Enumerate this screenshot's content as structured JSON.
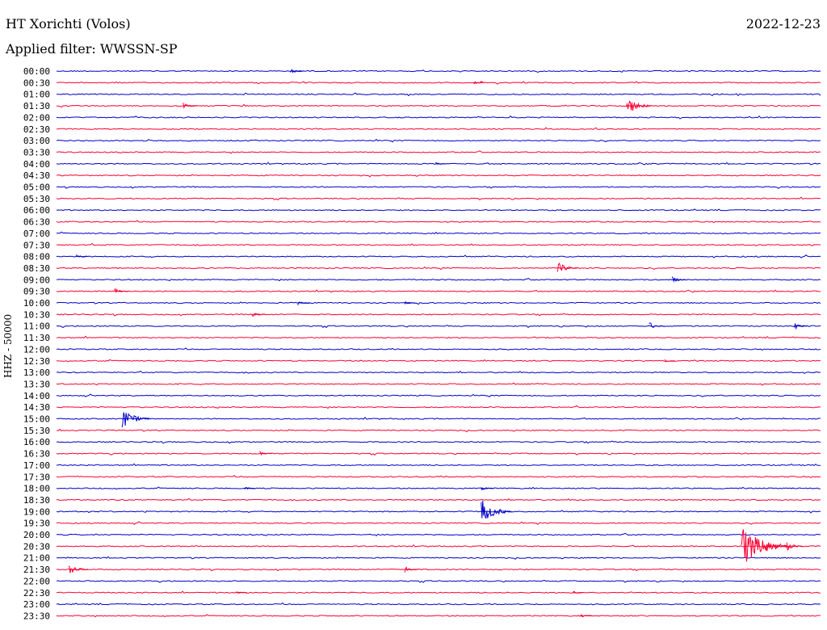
{
  "header": {
    "station": "HT Xorichti (Volos)",
    "date": "2022-12-23",
    "filter": "Applied filter: WWSSN-SP"
  },
  "chart_data": {
    "type": "line",
    "title": "HT Xorichti (Volos)",
    "ylabel": "HHZ - 50000",
    "colors": [
      "#0000cc",
      "#ff0033"
    ],
    "rows": [
      "00:00",
      "00:30",
      "01:00",
      "01:30",
      "02:00",
      "02:30",
      "03:00",
      "03:30",
      "04:00",
      "04:30",
      "05:00",
      "05:30",
      "06:00",
      "06:30",
      "07:00",
      "07:30",
      "08:00",
      "08:30",
      "09:00",
      "09:30",
      "10:00",
      "10:30",
      "11:00",
      "11:30",
      "12:00",
      "12:30",
      "13:00",
      "13:30",
      "14:00",
      "14:30",
      "15:00",
      "15:30",
      "16:00",
      "16:30",
      "17:00",
      "17:30",
      "18:00",
      "18:30",
      "19:00",
      "19:30",
      "20:00",
      "20:30",
      "21:00",
      "21:30",
      "22:00",
      "22:30",
      "23:00",
      "23:30"
    ],
    "events": [
      {
        "row": 0,
        "t": 0.31,
        "amp": 4
      },
      {
        "row": 1,
        "t": 0.55,
        "amp": 2
      },
      {
        "row": 3,
        "t": 0.17,
        "amp": 4
      },
      {
        "row": 3,
        "t": 0.75,
        "amp": 12
      },
      {
        "row": 8,
        "t": 0.5,
        "amp": 2
      },
      {
        "row": 16,
        "t": 0.03,
        "amp": 3
      },
      {
        "row": 17,
        "t": 0.66,
        "amp": 8
      },
      {
        "row": 18,
        "t": 0.81,
        "amp": 4
      },
      {
        "row": 19,
        "t": 0.08,
        "amp": 4
      },
      {
        "row": 20,
        "t": 0.32,
        "amp": 3
      },
      {
        "row": 20,
        "t": 0.46,
        "amp": 2
      },
      {
        "row": 21,
        "t": 0.26,
        "amp": 4
      },
      {
        "row": 22,
        "t": 0.78,
        "amp": 5
      },
      {
        "row": 22,
        "t": 0.97,
        "amp": 4
      },
      {
        "row": 25,
        "t": 0.8,
        "amp": 2
      },
      {
        "row": 30,
        "t": 0.09,
        "amp": 14
      },
      {
        "row": 33,
        "t": 0.27,
        "amp": 3
      },
      {
        "row": 36,
        "t": 0.25,
        "amp": 2
      },
      {
        "row": 36,
        "t": 0.56,
        "amp": 3
      },
      {
        "row": 38,
        "t": 0.56,
        "amp": 16
      },
      {
        "row": 41,
        "t": 0.9,
        "amp": 28
      },
      {
        "row": 41,
        "t": 0.93,
        "amp": 10
      },
      {
        "row": 41,
        "t": 0.96,
        "amp": 6
      },
      {
        "row": 43,
        "t": 0.02,
        "amp": 8
      },
      {
        "row": 43,
        "t": 0.46,
        "amp": 4
      },
      {
        "row": 45,
        "t": 0.24,
        "amp": 2
      },
      {
        "row": 45,
        "t": 0.68,
        "amp": 2
      },
      {
        "row": 47,
        "t": 0.69,
        "amp": 3
      }
    ]
  }
}
